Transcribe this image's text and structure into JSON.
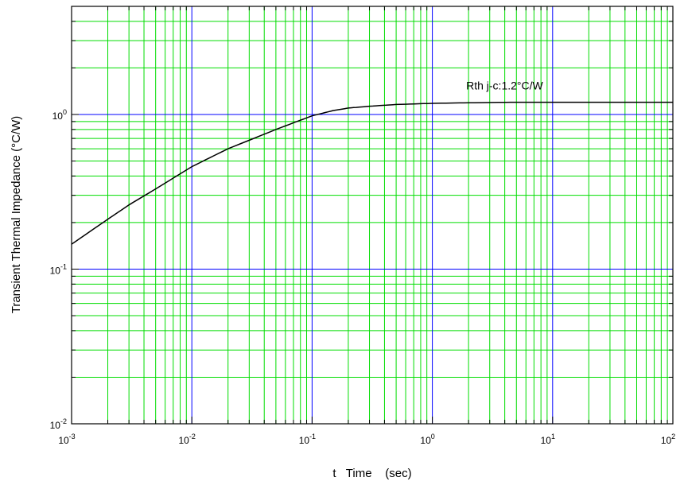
{
  "chart_data": {
    "type": "line",
    "title": "",
    "xlabel": "t   Time    (sec)",
    "ylabel": "Transient Thermal Impedance (°C/W)",
    "xscale": "log",
    "yscale": "log",
    "xlim": [
      0.001,
      100
    ],
    "ylim": [
      0.01,
      5
    ],
    "grid": true,
    "grid_colors": {
      "major": "#0000ff",
      "minor": "#00dd00"
    },
    "line_color": "#000000",
    "x_ticks": [
      {
        "value": 0.001,
        "base": "10",
        "exp": "-3"
      },
      {
        "value": 0.01,
        "base": "10",
        "exp": "-2"
      },
      {
        "value": 0.1,
        "base": "10",
        "exp": "-1"
      },
      {
        "value": 1,
        "base": "10",
        "exp": "0"
      },
      {
        "value": 10,
        "base": "10",
        "exp": "1"
      },
      {
        "value": 100,
        "base": "10",
        "exp": "2"
      }
    ],
    "y_ticks": [
      {
        "value": 0.01,
        "base": "10",
        "exp": "-2"
      },
      {
        "value": 0.1,
        "base": "10",
        "exp": "-1"
      },
      {
        "value": 1,
        "base": "10",
        "exp": "0"
      }
    ],
    "series": [
      {
        "x": [
          0.001,
          0.002,
          0.003,
          0.005,
          0.01,
          0.02,
          0.05,
          0.1,
          0.15,
          0.2,
          0.3,
          0.5,
          1,
          2,
          5,
          10,
          100
        ],
        "y": [
          0.145,
          0.21,
          0.26,
          0.33,
          0.46,
          0.6,
          0.8,
          0.98,
          1.06,
          1.1,
          1.13,
          1.16,
          1.18,
          1.19,
          1.2,
          1.2,
          1.2
        ]
      }
    ],
    "annotations": [
      {
        "text": "Rth j-c:1.2°C/W",
        "x": 2,
        "y": 1.45
      }
    ]
  }
}
